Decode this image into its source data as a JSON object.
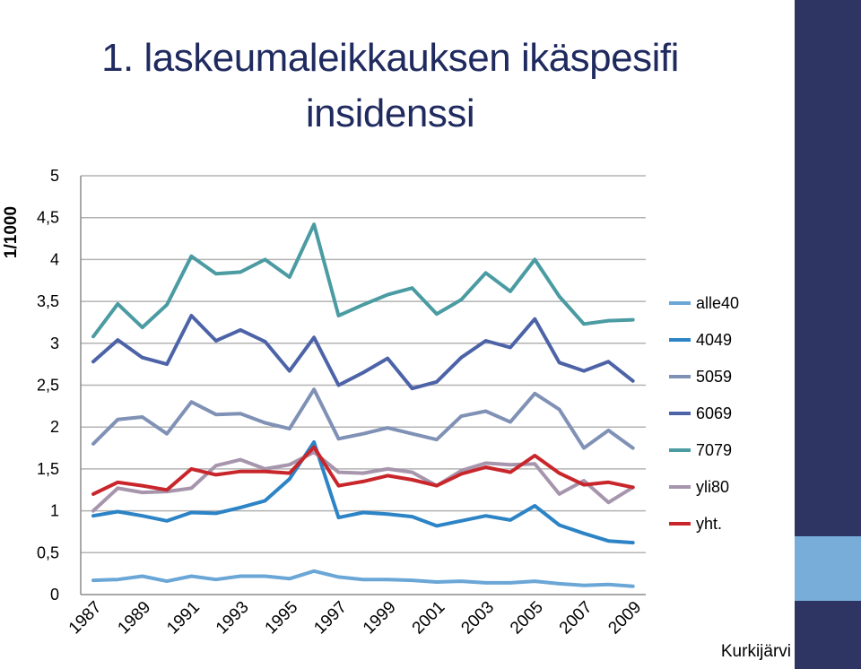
{
  "slide": {
    "title": "1. laskeumaleikkauksen ikäspesifi insidenssi",
    "footer": "Kurkijärvi"
  },
  "colors": {
    "sidebar_dark": "#2e3563",
    "sidebar_light": "#78acd9",
    "title": "#1f2a5f",
    "grid": "#b3b3b3"
  },
  "chart_data": {
    "type": "line",
    "title": "1. laskeumaleikkauksen ikäspesifi insidenssi",
    "xlabel": "",
    "ylabel": "1/1000",
    "ylim": [
      0,
      5
    ],
    "yticks": [
      "0",
      "0,5",
      "1",
      "1,5",
      "2",
      "2,5",
      "3",
      "3,5",
      "4",
      "4,5",
      "5"
    ],
    "ytick_values": [
      0,
      0.5,
      1,
      1.5,
      2,
      2.5,
      3,
      3.5,
      4,
      4.5,
      5
    ],
    "x": [
      1987,
      1988,
      1989,
      1990,
      1991,
      1992,
      1993,
      1994,
      1995,
      1996,
      1997,
      1998,
      1999,
      2000,
      2001,
      2002,
      2003,
      2004,
      2005,
      2006,
      2007,
      2008,
      2009
    ],
    "xticks": [
      "1987",
      "1989",
      "1991",
      "1993",
      "1995",
      "1997",
      "1999",
      "2001",
      "2003",
      "2005",
      "2007",
      "2009"
    ],
    "grid": true,
    "legend_position": "right",
    "series": [
      {
        "name": "alle40",
        "color": "#6aa6d6",
        "values": [
          0.17,
          0.18,
          0.22,
          0.16,
          0.22,
          0.18,
          0.22,
          0.22,
          0.19,
          0.28,
          0.21,
          0.18,
          0.18,
          0.17,
          0.15,
          0.16,
          0.14,
          0.14,
          0.16,
          0.13,
          0.11,
          0.12,
          0.1
        ]
      },
      {
        "name": "4049",
        "color": "#2c84c6",
        "values": [
          0.94,
          0.99,
          0.94,
          0.88,
          0.98,
          0.97,
          1.04,
          1.12,
          1.38,
          1.82,
          0.92,
          0.98,
          0.96,
          0.93,
          0.82,
          0.88,
          0.94,
          0.89,
          1.06,
          0.83,
          0.73,
          0.64,
          0.62
        ]
      },
      {
        "name": "5059",
        "color": "#8091b6",
        "values": [
          1.8,
          2.09,
          2.12,
          1.92,
          2.3,
          2.15,
          2.16,
          2.05,
          1.98,
          2.45,
          1.86,
          1.92,
          1.99,
          1.92,
          1.85,
          2.13,
          2.19,
          2.06,
          2.4,
          2.21,
          1.75,
          1.96,
          1.75
        ]
      },
      {
        "name": "6069",
        "color": "#4d63a8",
        "values": [
          2.78,
          3.04,
          2.83,
          2.75,
          3.33,
          3.03,
          3.16,
          3.02,
          2.67,
          3.07,
          2.5,
          2.65,
          2.82,
          2.46,
          2.54,
          2.83,
          3.03,
          2.95,
          3.29,
          2.77,
          2.67,
          2.78,
          2.55
        ]
      },
      {
        "name": "7079",
        "color": "#4a9ba2",
        "values": [
          3.08,
          3.47,
          3.19,
          3.46,
          4.04,
          3.83,
          3.85,
          4.0,
          3.79,
          4.42,
          3.33,
          3.46,
          3.58,
          3.66,
          3.35,
          3.52,
          3.84,
          3.62,
          4.0,
          3.56,
          3.23,
          3.27,
          3.28
        ]
      },
      {
        "name": "yli80",
        "color": "#a695ac",
        "values": [
          1.0,
          1.27,
          1.22,
          1.23,
          1.27,
          1.54,
          1.61,
          1.5,
          1.55,
          1.7,
          1.46,
          1.45,
          1.5,
          1.46,
          1.3,
          1.48,
          1.57,
          1.55,
          1.56,
          1.2,
          1.36,
          1.1,
          1.28
        ]
      },
      {
        "name": "yht.",
        "color": "#c8262b",
        "values": [
          1.2,
          1.34,
          1.3,
          1.25,
          1.5,
          1.43,
          1.47,
          1.47,
          1.45,
          1.76,
          1.3,
          1.35,
          1.42,
          1.37,
          1.3,
          1.44,
          1.52,
          1.46,
          1.66,
          1.45,
          1.31,
          1.34,
          1.28
        ]
      }
    ]
  }
}
